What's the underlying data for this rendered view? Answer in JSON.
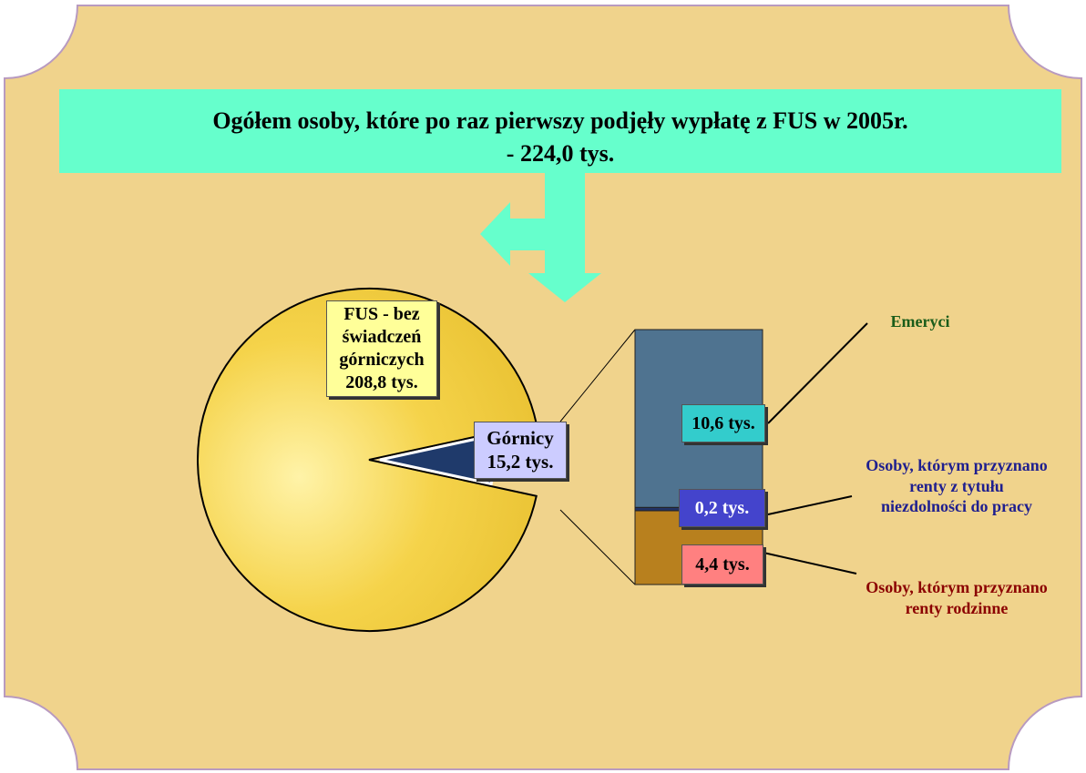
{
  "chart_data": {
    "type": "pie",
    "title": "Ogółem osoby, które po raz pierwszy podjęły wypłatę z FUS w 2005r.",
    "subtitle": "- 224,0 tys.",
    "categories": [
      "FUS - bez świadczeń górniczych",
      "Górnicy"
    ],
    "values": [
      208.8,
      15.2
    ],
    "value_labels": [
      "208,8 tys.",
      "15,2 tys."
    ],
    "colors": [
      "#f5d34a",
      "#1f3a6b"
    ],
    "breakdown": {
      "type": "bar",
      "categories": [
        "Emeryci",
        "Osoby, którym przyznano renty z tytułu niezdolności do pracy",
        "Osoby, którym przyznano renty rodzinne"
      ],
      "values": [
        10.6,
        0.2,
        4.4
      ],
      "value_labels": [
        "10,6 tys.",
        "0,2 tys.",
        "4,4 tys."
      ],
      "colors": [
        "#4f7390",
        "#223366",
        "#b8801e"
      ]
    }
  }
}
